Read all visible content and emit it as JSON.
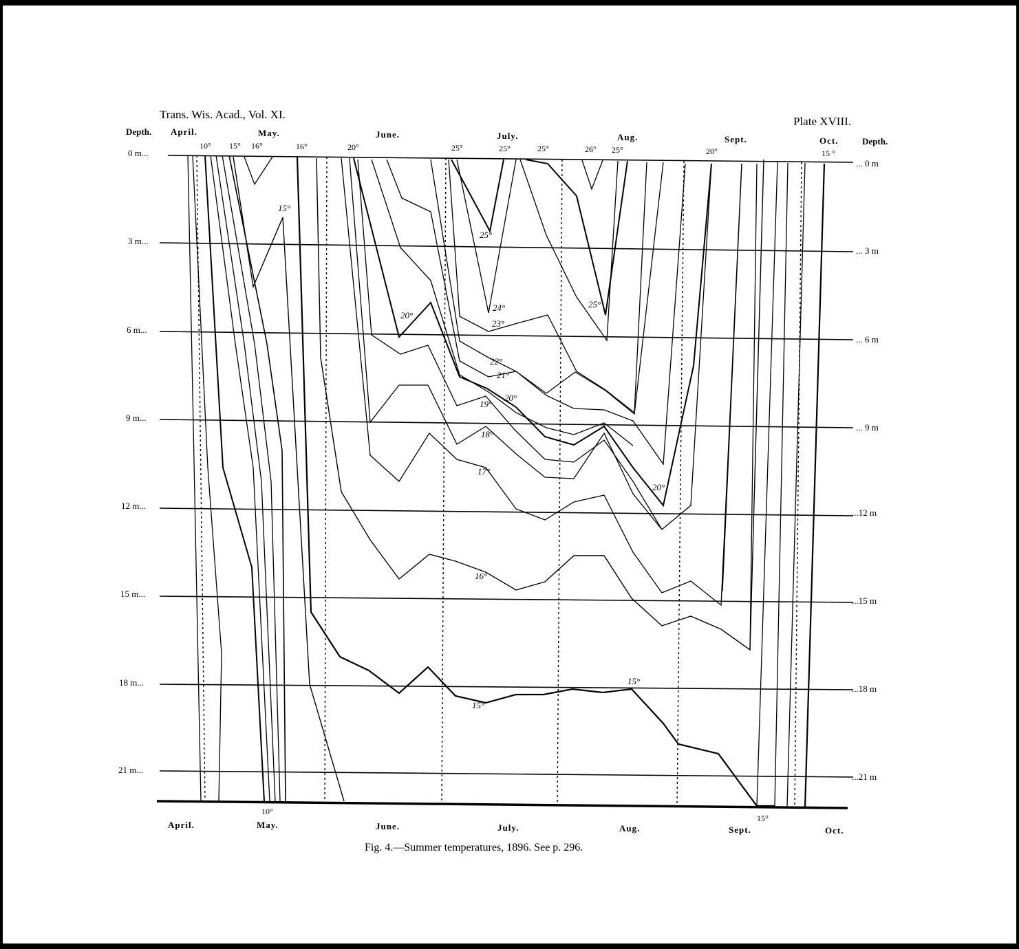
{
  "header": {
    "journal": "Trans. Wis. Acad., Vol. XI.",
    "plate": "Plate XVIII."
  },
  "caption": "Fig. 4.—Summer temperatures, 1896.  See p. 296.",
  "chart_data": {
    "type": "line",
    "title": "Summer temperatures, 1896.",
    "ylabel_left": "Depth.",
    "ylabel_right": "Depth.",
    "depth_ticks_left": [
      "0 m...",
      "3 m...",
      "6 m...",
      "9 m...",
      "12 m...",
      "15 m...",
      "18 m...",
      "21 m..."
    ],
    "depth_ticks_right": [
      "... 0 m",
      "... 3 m",
      "... 6 m",
      "... 9 m",
      "...12 m",
      "...15 m",
      "...18 m",
      "...21 m"
    ],
    "depth_values_m": [
      0,
      3,
      6,
      9,
      12,
      15,
      18,
      21
    ],
    "ylim_m": [
      0,
      22
    ],
    "months_top": [
      "April.",
      "May.",
      "June.",
      "July.",
      "Aug.",
      "Sept.",
      "Oct."
    ],
    "months_bottom": [
      "April.",
      "May.",
      "June.",
      "July.",
      "Aug.",
      "Sept.",
      "Oct."
    ],
    "surface_temp_labels": [
      "10°",
      "15°",
      "16°",
      "16°",
      "20°",
      "25°",
      "25°",
      "25°",
      "26°",
      "25°",
      "20°",
      "15 °"
    ],
    "bottom_temp_labels": [
      "10°",
      "15°"
    ],
    "isotherm_labels": [
      "15°",
      "25°",
      "24°",
      "23°",
      "25°",
      "20°",
      "22°",
      "21°",
      "20°",
      "19°",
      "18°",
      "17°",
      "20°",
      "16°",
      "15°",
      "15°"
    ],
    "x_ticks": [
      "April.",
      "May.",
      "June.",
      "July.",
      "Aug.",
      "Sept.",
      "Oct."
    ],
    "grid": "horizontal depth lines at every 3 m; dotted vertical lines at month boundaries",
    "series": [
      {
        "name": "15°",
        "points": [
          [
            "Apr",
            22
          ],
          [
            "May-early",
            19
          ],
          [
            "May-mid",
            4.3
          ],
          [
            "May-late",
            2.1
          ]
        ]
      },
      {
        "name": "25°",
        "points": [
          [
            "Jul-early",
            0
          ],
          [
            "Jul",
            2.5
          ],
          [
            "Jul",
            0
          ]
        ]
      },
      {
        "name": "24°",
        "points": [
          [
            "Jun-late",
            0
          ],
          [
            "Jul",
            5.2
          ],
          [
            "Jul",
            0
          ]
        ]
      },
      {
        "name": "23°",
        "points": [
          [
            "Jun-late",
            0
          ],
          [
            "Jul",
            5.8
          ],
          [
            "Jul-late",
            5.2
          ],
          [
            "Aug",
            6
          ]
        ]
      },
      {
        "name": "25°",
        "points": [
          [
            "Jul-late",
            0
          ],
          [
            "Aug",
            5.3
          ],
          [
            "Aug",
            0
          ]
        ]
      },
      {
        "name": "20°",
        "points": [
          [
            "Jun-mid",
            0
          ],
          [
            "Jun",
            5.9
          ],
          [
            "Jun-late",
            4.9
          ],
          [
            "Jul",
            8
          ],
          [
            "Aug",
            11.7
          ],
          [
            "Sept",
            0
          ]
        ]
      },
      {
        "name": "22°",
        "points": [
          [
            "Jun-mid",
            0
          ],
          [
            "Jul",
            7.1
          ],
          [
            "Aug",
            8.6
          ]
        ]
      },
      {
        "name": "21°",
        "points": [
          [
            "Jun",
            0
          ],
          [
            "Jul",
            7.6
          ],
          [
            "Aug",
            9
          ]
        ]
      },
      {
        "name": "20°",
        "points": [
          [
            "Jun",
            0
          ],
          [
            "Jul",
            8.2
          ],
          [
            "Aug",
            9.6
          ]
        ]
      },
      {
        "name": "19°",
        "points": [
          [
            "Jun",
            6
          ],
          [
            "Jun-late",
            7.8
          ],
          [
            "Jul",
            8.4
          ],
          [
            "Aug",
            10
          ]
        ]
      },
      {
        "name": "18°",
        "points": [
          [
            "Jun",
            0
          ],
          [
            "Jun",
            9.1
          ],
          [
            "Jun-late",
            9.3
          ],
          [
            "Jul",
            10.1
          ],
          [
            "Aug",
            12.3
          ]
        ]
      },
      {
        "name": "17°",
        "points": [
          [
            "Jun",
            0
          ],
          [
            "Jun",
            11
          ],
          [
            "Jun-late",
            10.6
          ],
          [
            "Jul",
            12.2
          ],
          [
            "Aug",
            11.8
          ],
          [
            "Sept",
            15
          ]
        ]
      },
      {
        "name": "16°",
        "points": [
          [
            "May",
            0
          ],
          [
            "Jun",
            14.5
          ],
          [
            "Jun-late",
            13.8
          ],
          [
            "Jul",
            14.4
          ],
          [
            "Aug",
            13.8
          ],
          [
            "Sept",
            16.5
          ]
        ]
      },
      {
        "name": "15°",
        "points": [
          [
            "May",
            0
          ],
          [
            "May-late",
            15.5
          ],
          [
            "Jun",
            17.5
          ],
          [
            "Jun-late",
            18.3
          ],
          [
            "Jul",
            18.4
          ],
          [
            "Aug",
            18.1
          ],
          [
            "Sept",
            19.8
          ],
          [
            "Sept-late",
            22
          ]
        ]
      }
    ]
  }
}
